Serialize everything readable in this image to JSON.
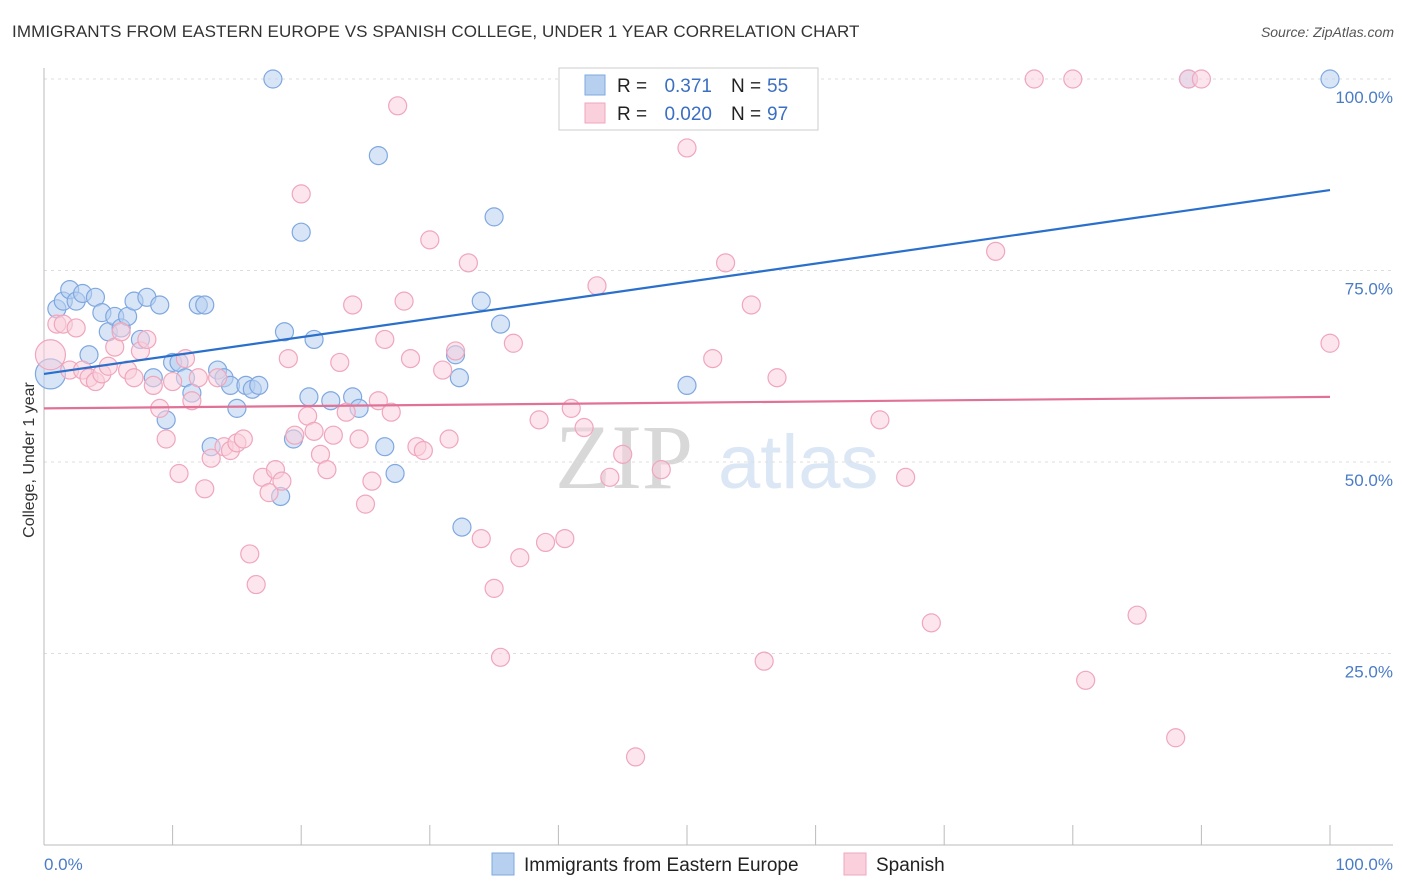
{
  "title": "IMMIGRANTS FROM EASTERN EUROPE VS SPANISH COLLEGE, UNDER 1 YEAR CORRELATION CHART",
  "source": "Source: ZipAtlas.com",
  "watermark": {
    "zip": "ZIP",
    "atlas": "atlas"
  },
  "chart_data": {
    "type": "scatter",
    "xlabel": "",
    "ylabel": "College, Under 1 year",
    "xlim": [
      0,
      100
    ],
    "ylim": [
      0,
      100
    ],
    "x_tick_labels": {
      "min": "0.0%",
      "max": "100.0%"
    },
    "y_ticks": [
      {
        "value": 100,
        "label": "100.0%"
      },
      {
        "value": 75,
        "label": "75.0%"
      },
      {
        "value": 50,
        "label": "50.0%"
      },
      {
        "value": 25,
        "label": "25.0%"
      }
    ],
    "legend": {
      "r_label": "R =",
      "n_label": "N =",
      "entries": [
        {
          "series": "Immigrants from Eastern Europe",
          "r": "0.371",
          "n": "55"
        },
        {
          "series": "Spanish",
          "r": "0.020",
          "n": "97"
        }
      ]
    },
    "series": [
      {
        "name": "Immigrants from Eastern Europe",
        "color": "#7fa8e0",
        "fill": "#b8d0f0",
        "trend": {
          "x0": 0,
          "y0": 61.5,
          "x1": 100,
          "y1": 85.5,
          "color": "#2a6fcc"
        },
        "points": [
          [
            0.5,
            61.5
          ],
          [
            1,
            70
          ],
          [
            1.5,
            71
          ],
          [
            2,
            72.5
          ],
          [
            2.5,
            71
          ],
          [
            3,
            72
          ],
          [
            3.5,
            64
          ],
          [
            4,
            71.5
          ],
          [
            4.5,
            69.5
          ],
          [
            5,
            67
          ],
          [
            5.5,
            69
          ],
          [
            6,
            67.5
          ],
          [
            6.5,
            69
          ],
          [
            7,
            71
          ],
          [
            7.5,
            66
          ],
          [
            8,
            71.5
          ],
          [
            8.5,
            61
          ],
          [
            9,
            70.5
          ],
          [
            9.5,
            55.5
          ],
          [
            10,
            63
          ],
          [
            10.5,
            63
          ],
          [
            11,
            61
          ],
          [
            11.5,
            59
          ],
          [
            12,
            70.5
          ],
          [
            12.5,
            70.5
          ],
          [
            13,
            52
          ],
          [
            13.5,
            62
          ],
          [
            14,
            61
          ],
          [
            14.5,
            60
          ],
          [
            15,
            57
          ],
          [
            15.7,
            60
          ],
          [
            16.2,
            59.5
          ],
          [
            16.7,
            60
          ],
          [
            18.4,
            45.5
          ],
          [
            17.8,
            100
          ],
          [
            18.7,
            67
          ],
          [
            19.4,
            53
          ],
          [
            20,
            80
          ],
          [
            20.6,
            58.5
          ],
          [
            21,
            66
          ],
          [
            22.3,
            58
          ],
          [
            24,
            58.5
          ],
          [
            24.5,
            57
          ],
          [
            26,
            90
          ],
          [
            26.5,
            52
          ],
          [
            27.3,
            48.5
          ],
          [
            32,
            64
          ],
          [
            32.3,
            61
          ],
          [
            32.5,
            41.5
          ],
          [
            34,
            71
          ],
          [
            35,
            82
          ],
          [
            35.5,
            68
          ],
          [
            50,
            60
          ],
          [
            89,
            100
          ],
          [
            100,
            100
          ]
        ]
      },
      {
        "name": "Spanish",
        "color": "#f0a6bd",
        "fill": "#f9d0dc",
        "trend": {
          "x0": 0,
          "y0": 57,
          "x1": 100,
          "y1": 58.5,
          "color": "#e07298"
        },
        "points": [
          [
            0.5,
            64
          ],
          [
            1,
            68
          ],
          [
            1.5,
            68
          ],
          [
            2,
            62
          ],
          [
            2.5,
            67.5
          ],
          [
            3,
            62
          ],
          [
            3.5,
            61
          ],
          [
            4,
            60.5
          ],
          [
            4.5,
            61.5
          ],
          [
            5,
            62.5
          ],
          [
            5.5,
            65
          ],
          [
            6,
            67
          ],
          [
            6.5,
            62
          ],
          [
            7,
            61
          ],
          [
            7.5,
            64.5
          ],
          [
            8,
            66
          ],
          [
            8.5,
            60
          ],
          [
            9,
            57
          ],
          [
            9.5,
            53
          ],
          [
            10,
            60.5
          ],
          [
            10.5,
            48.5
          ],
          [
            11,
            63.5
          ],
          [
            11.5,
            58
          ],
          [
            12,
            61
          ],
          [
            12.5,
            46.5
          ],
          [
            13,
            50.5
          ],
          [
            13.5,
            61
          ],
          [
            14,
            52
          ],
          [
            14.5,
            51.5
          ],
          [
            15,
            52.5
          ],
          [
            15.5,
            53
          ],
          [
            16,
            38
          ],
          [
            16.5,
            34
          ],
          [
            17,
            48
          ],
          [
            17.5,
            46
          ],
          [
            18,
            49
          ],
          [
            18.5,
            47.5
          ],
          [
            19,
            63.5
          ],
          [
            19.5,
            53.5
          ],
          [
            20,
            85
          ],
          [
            20.5,
            56
          ],
          [
            21,
            54
          ],
          [
            21.5,
            51
          ],
          [
            22,
            49
          ],
          [
            22.5,
            53.5
          ],
          [
            23,
            63
          ],
          [
            23.5,
            56.5
          ],
          [
            24,
            70.5
          ],
          [
            24.5,
            53
          ],
          [
            25,
            44.5
          ],
          [
            25.5,
            47.5
          ],
          [
            26,
            58
          ],
          [
            26.5,
            66
          ],
          [
            27,
            56.5
          ],
          [
            27.5,
            96.5
          ],
          [
            28,
            71
          ],
          [
            28.5,
            63.5
          ],
          [
            29,
            52
          ],
          [
            29.5,
            51.5
          ],
          [
            30,
            79
          ],
          [
            31,
            62
          ],
          [
            31.5,
            53
          ],
          [
            32,
            64.5
          ],
          [
            33,
            76
          ],
          [
            34,
            40
          ],
          [
            35,
            33.5
          ],
          [
            35.5,
            24.5
          ],
          [
            36.5,
            65.5
          ],
          [
            37,
            37.5
          ],
          [
            38.5,
            55.5
          ],
          [
            39,
            39.5
          ],
          [
            40.5,
            40
          ],
          [
            41,
            57
          ],
          [
            42,
            54.5
          ],
          [
            43,
            73
          ],
          [
            44,
            48
          ],
          [
            45,
            51
          ],
          [
            46,
            11.5
          ],
          [
            48,
            49
          ],
          [
            50,
            91
          ],
          [
            52,
            63.5
          ],
          [
            53,
            76
          ],
          [
            55,
            70.5
          ],
          [
            56,
            24
          ],
          [
            57,
            61
          ],
          [
            65,
            55.5
          ],
          [
            67,
            48
          ],
          [
            69,
            29
          ],
          [
            74,
            77.5
          ],
          [
            77,
            100
          ],
          [
            80,
            100
          ],
          [
            81,
            21.5
          ],
          [
            85,
            30
          ],
          [
            88,
            14
          ],
          [
            89,
            100
          ],
          [
            90,
            100
          ],
          [
            100,
            65.5
          ]
        ]
      }
    ]
  }
}
